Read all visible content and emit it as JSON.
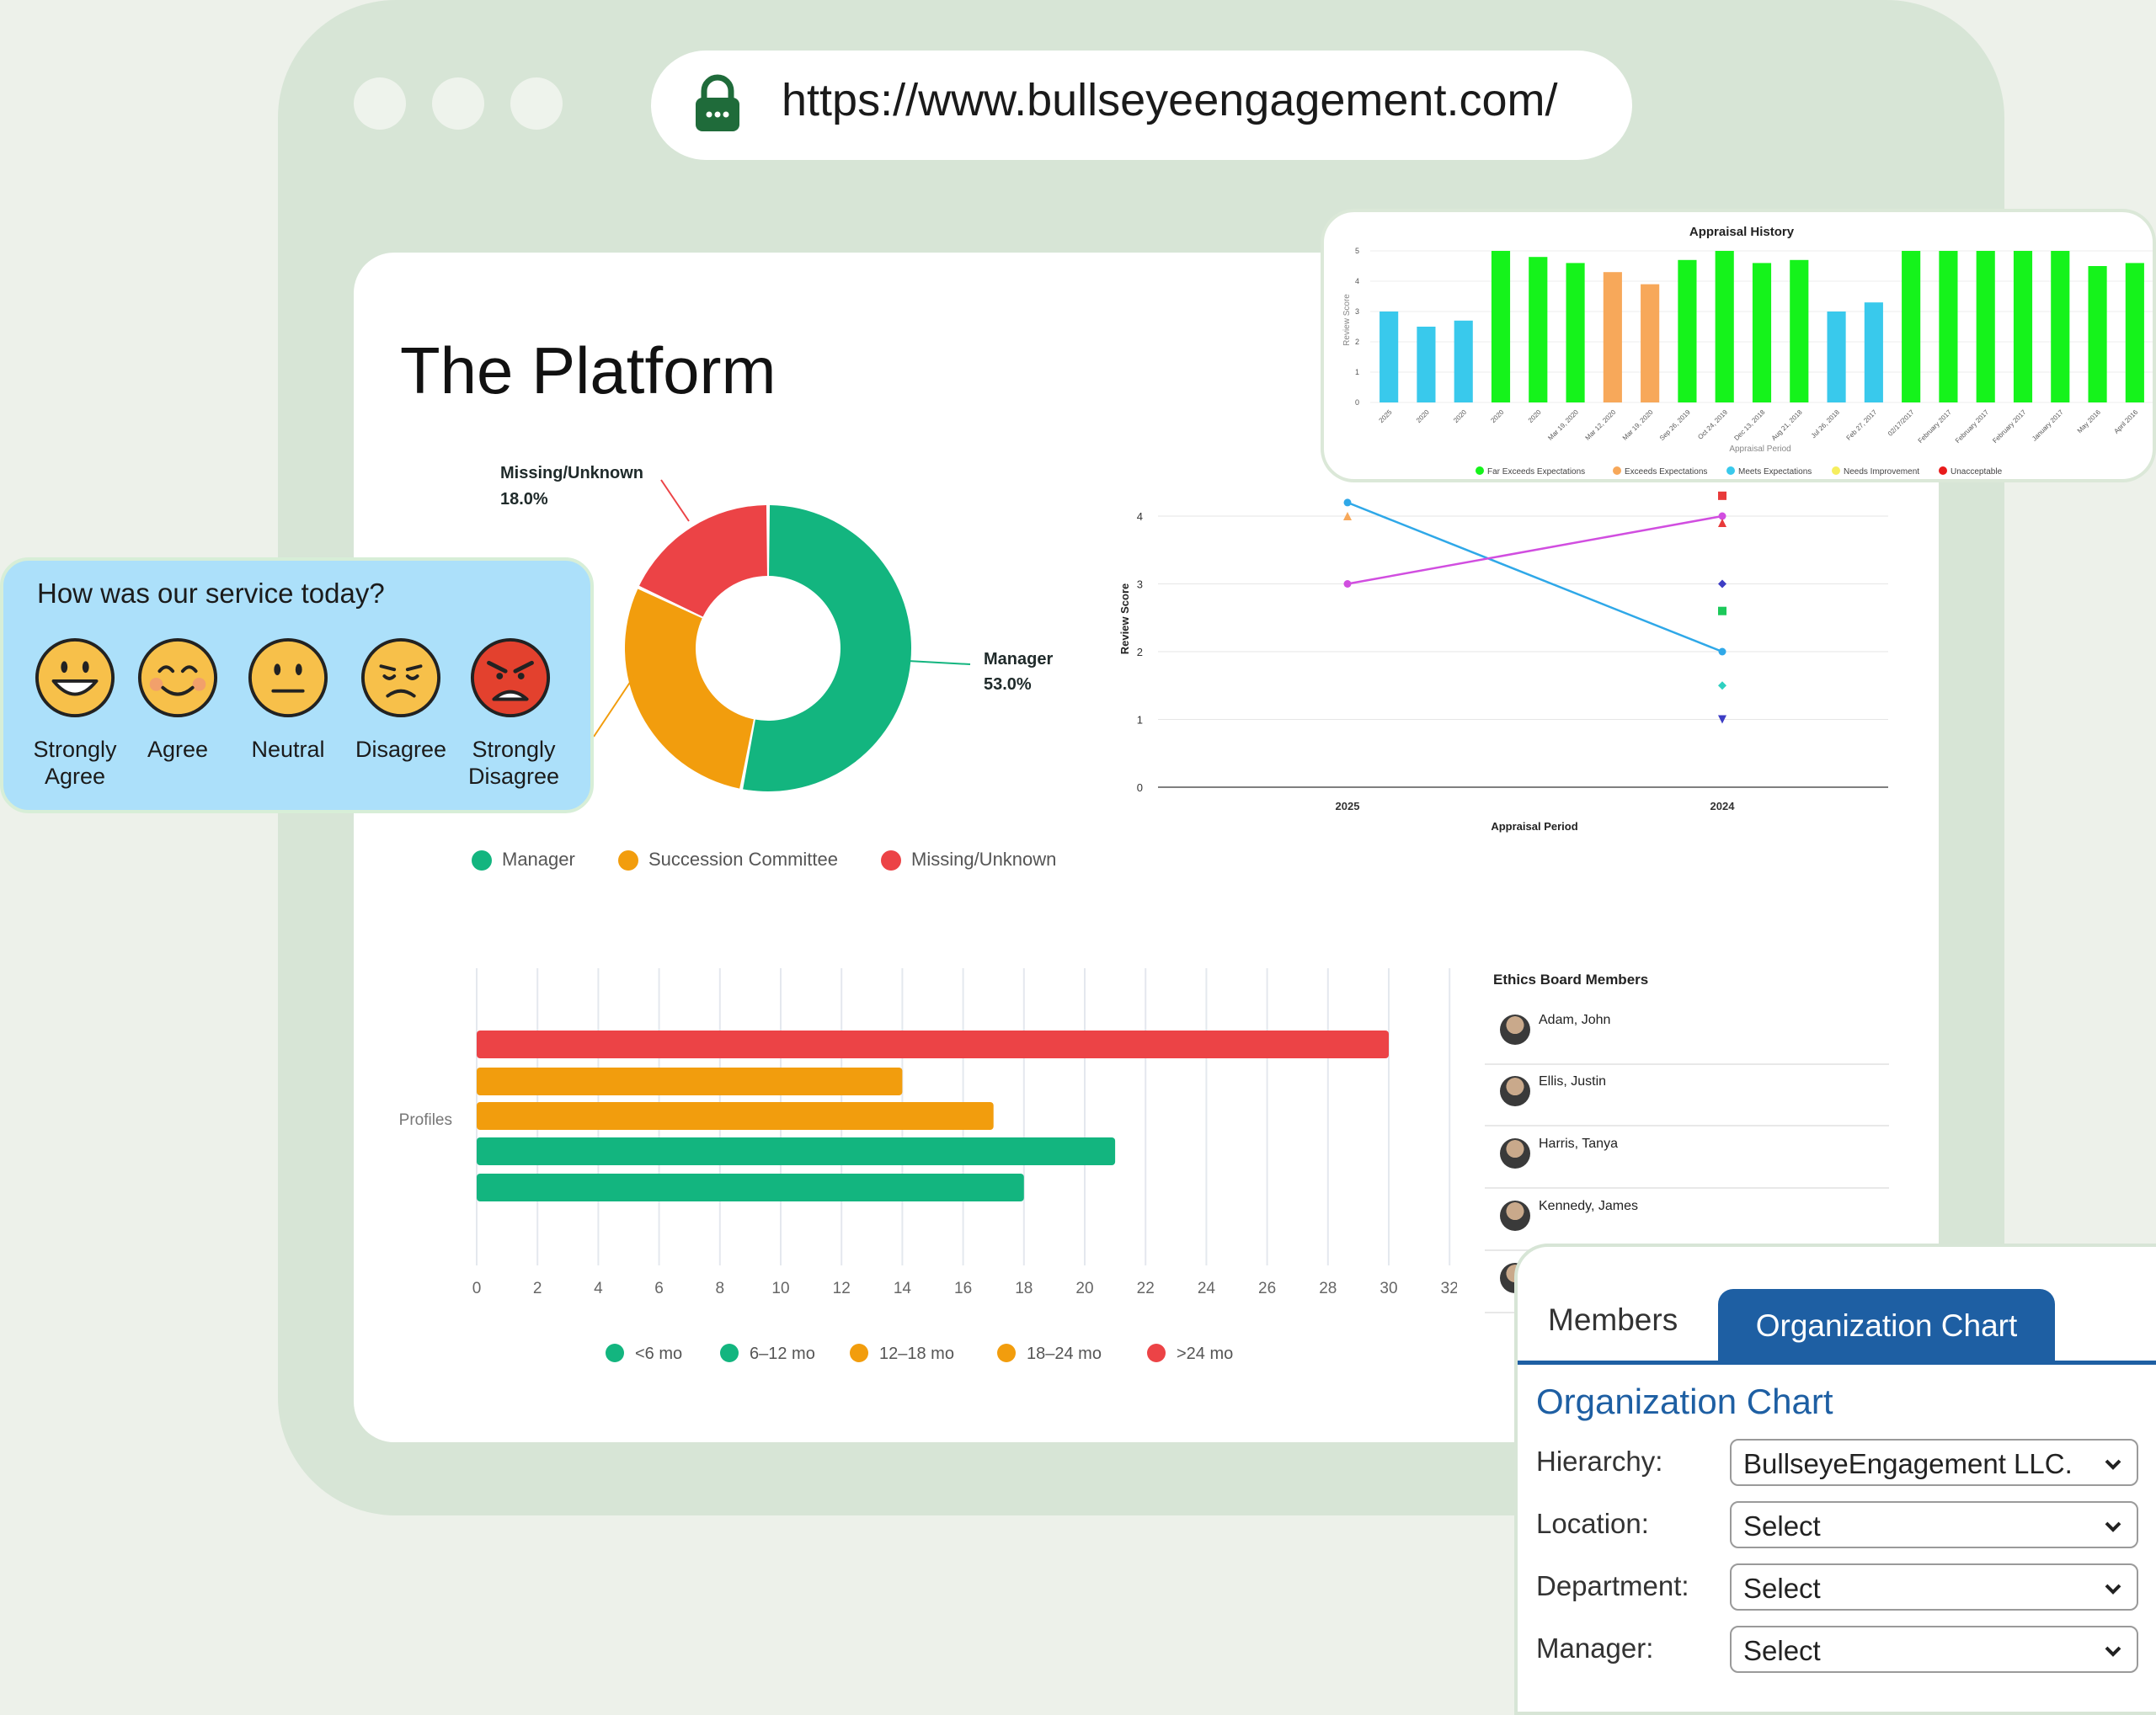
{
  "browser": {
    "url": "https://www.bullseyeengagement.com/"
  },
  "page": {
    "title": "The Platform"
  },
  "appraisal_history": {
    "title": "Appraisal History",
    "ylabel": "Review Score",
    "xlabel": "Appraisal Period",
    "legend": [
      {
        "label": "Far Exceeds Expectations",
        "color": "#15f31b"
      },
      {
        "label": "Exceeds Expectations",
        "color": "#f7a85a"
      },
      {
        "label": "Meets Expectations",
        "color": "#39c9ec"
      },
      {
        "label": "Needs Improvement",
        "color": "#f6ee5e"
      },
      {
        "label": "Unacceptable",
        "color": "#e81b1b"
      }
    ]
  },
  "survey": {
    "question": "How was our service today?",
    "options": [
      {
        "label": "Strongly Agree",
        "icon": "grinning-face-icon"
      },
      {
        "label": "Agree",
        "icon": "smiling-face-icon"
      },
      {
        "label": "Neutral",
        "icon": "neutral-face-icon"
      },
      {
        "label": "Disagree",
        "icon": "sad-face-icon"
      },
      {
        "label": "Strongly Disagree",
        "icon": "angry-face-icon"
      }
    ]
  },
  "donut": {
    "legend": [
      "Manager",
      "Succession Committee",
      "Missing/Unknown"
    ],
    "labels": {
      "missing_name": "Missing/Unknown",
      "missing_pct": "18.0%",
      "manager_name": "Manager",
      "manager_pct": "53.0%"
    }
  },
  "review_line": {
    "ylabel": "Review Score",
    "xlabel": "Appraisal Period"
  },
  "tenure_bar": {
    "axis_label": "Profiles",
    "legend": [
      "<6 mo",
      "6–12 mo",
      "12–18 mo",
      "18–24 mo",
      ">24 mo"
    ]
  },
  "ethics_board": {
    "title": "Ethics Board Members",
    "members": [
      "Adam, John",
      "Ellis, Justin",
      "Harris, Tanya",
      "Kennedy, James"
    ]
  },
  "org_panel": {
    "tabs": [
      "Members",
      "Organization Chart"
    ],
    "heading": "Organization Chart",
    "fields": [
      {
        "label": "Hierarchy:",
        "value": "BullseyeEngagement LLC."
      },
      {
        "label": "Location:",
        "value": "Select"
      },
      {
        "label": "Department:",
        "value": "Select"
      },
      {
        "label": "Manager:",
        "value": "Select"
      }
    ]
  },
  "chart_data": [
    {
      "type": "bar",
      "title": "Appraisal History",
      "xlabel": "Appraisal Period",
      "ylabel": "Review Score",
      "ylim": [
        0,
        5
      ],
      "yticks": [
        0,
        1,
        2,
        3,
        4,
        5
      ],
      "categories": [
        "2025",
        "2020",
        "2020",
        "2020",
        "2020",
        "Mar 19, 2020",
        "Mar 12, 2020",
        "Mar 19, 2020",
        "Sep 26, 2019",
        "Oct 24, 2019",
        "Dec 13, 2018",
        "Aug 21, 2018",
        "Jul 26, 2018",
        "Feb 27, 2017",
        "02/17/2017",
        "February 2017",
        "February 2017",
        "February 2017",
        "January 2017",
        "May 2016",
        "April 2016"
      ],
      "values": [
        3.0,
        2.5,
        2.7,
        5.0,
        4.8,
        4.6,
        4.3,
        3.9,
        4.7,
        5.0,
        4.6,
        4.7,
        3.0,
        3.3,
        5.0,
        5.0,
        5.0,
        5.0,
        5.0,
        4.5,
        4.6
      ],
      "ratings": [
        "Meets Expectations",
        "Meets Expectations",
        "Meets Expectations",
        "Far Exceeds Expectations",
        "Far Exceeds Expectations",
        "Far Exceeds Expectations",
        "Exceeds Expectations",
        "Exceeds Expectations",
        "Far Exceeds Expectations",
        "Far Exceeds Expectations",
        "Far Exceeds Expectations",
        "Far Exceeds Expectations",
        "Meets Expectations",
        "Meets Expectations",
        "Far Exceeds Expectations",
        "Far Exceeds Expectations",
        "Far Exceeds Expectations",
        "Far Exceeds Expectations",
        "Far Exceeds Expectations",
        "Far Exceeds Expectations",
        "Far Exceeds Expectations"
      ],
      "legend_position": "bottom"
    },
    {
      "type": "pie",
      "donut": true,
      "categories": [
        "Manager",
        "Succession Committee",
        "Missing/Unknown"
      ],
      "values": [
        53.0,
        29.0,
        18.0
      ],
      "colors": [
        "#13b57f",
        "#f29d0d",
        "#ec4346"
      ],
      "legend_position": "bottom"
    },
    {
      "type": "line",
      "xlabel": "Appraisal Period",
      "ylabel": "Review Score",
      "x": [
        "2025",
        "2024"
      ],
      "ylim": [
        0,
        4.3
      ],
      "yticks": [
        0,
        1,
        2,
        3,
        4
      ],
      "series": [
        {
          "values": [
            4.2,
            2.0
          ],
          "color": "#2fa8e8"
        },
        {
          "values": [
            3.0,
            4.0
          ],
          "color": "#d14ee0"
        }
      ],
      "points": [
        {
          "x": "2025",
          "y": 4.0,
          "color": "#f7a85a",
          "shape": "triangle"
        },
        {
          "x": "2024",
          "y": 4.3,
          "color": "#e83a3a",
          "shape": "square"
        },
        {
          "x": "2024",
          "y": 3.9,
          "color": "#e83a3a",
          "shape": "triangle"
        },
        {
          "x": "2024",
          "y": 3.0,
          "color": "#3d3dc4",
          "shape": "diamond"
        },
        {
          "x": "2024",
          "y": 2.6,
          "color": "#1cc95a",
          "shape": "square"
        },
        {
          "x": "2024",
          "y": 1.5,
          "color": "#2fd0c0",
          "shape": "diamond"
        },
        {
          "x": "2024",
          "y": 1.0,
          "color": "#3d3dc4",
          "shape": "triangle-down"
        }
      ],
      "grid": true
    },
    {
      "type": "bar",
      "orientation": "horizontal",
      "ylabel": "Profiles",
      "xlim": [
        0,
        32
      ],
      "xticks": [
        0,
        2,
        4,
        6,
        8,
        10,
        12,
        14,
        16,
        18,
        20,
        22,
        24,
        26,
        28,
        30,
        32
      ],
      "categories": [
        ">24 mo",
        "18–24 mo",
        "12–18 mo",
        "6–12 mo",
        "<6 mo"
      ],
      "values": [
        30,
        14,
        17,
        21,
        18
      ],
      "colors": [
        "#ec4346",
        "#f29d0d",
        "#f29d0d",
        "#13b57f",
        "#13b57f"
      ],
      "legend_position": "bottom",
      "grid": true
    }
  ]
}
